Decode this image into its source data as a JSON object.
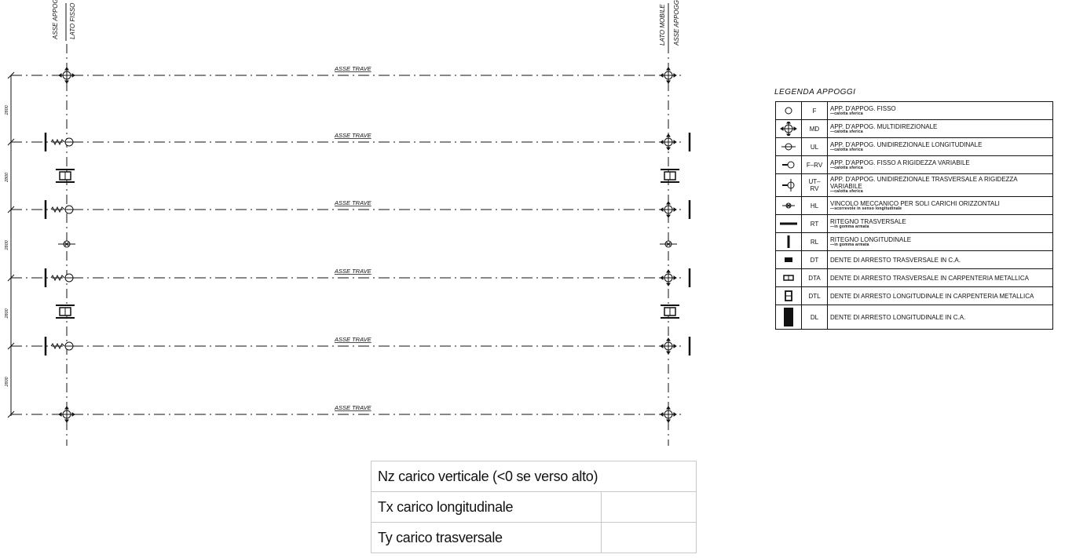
{
  "drawing": {
    "axis_left_labels": [
      "ASSE APPOGGI",
      "LATO FISSO"
    ],
    "axis_right_labels": [
      "LATO MOBILE",
      "ASSE APPOGGI"
    ],
    "beam_label": "ASSE TRAVE",
    "spacing_label": "2800",
    "spacing_count": 5
  },
  "legend": {
    "title": "LEGENDA APPOGGI",
    "rows": [
      {
        "symbol": "circle-icon",
        "code": "F",
        "desc": "APP. D'APPOG. FISSO",
        "sub": "—calotta sferica"
      },
      {
        "symbol": "multidirectional-icon",
        "code": "MD",
        "desc": "APP. D'APPOG. MULTIDIREZIONALE",
        "sub": "—calotta sferica"
      },
      {
        "symbol": "unidirectional-longitudinal-icon",
        "code": "UL",
        "desc": "APP. D'APPOG. UNIDIREZIONALE LONGITUDINALE",
        "sub": "—calotta sferica"
      },
      {
        "symbol": "fixed-variable-stiffness-icon",
        "code": "F–RV",
        "desc": "APP. D'APPOG. FISSO A RIGIDEZZA VARIABILE",
        "sub": "—calotta sferica"
      },
      {
        "symbol": "unidirectional-transverse-variable-icon",
        "code": "UT–RV",
        "desc": "APP. D'APPOG. UNIDIREZIONALE TRASVERSALE A RIGIDEZZA VARIABILE",
        "sub": "—calotta sferica"
      },
      {
        "symbol": "horizontal-restraint-icon",
        "code": "HL",
        "desc": "VINCOLO MECCANICO PER SOLI CARICHI ORIZZONTALI",
        "sub": "—scorrevole in senso longitudinale"
      },
      {
        "symbol": "transverse-restraint-icon",
        "code": "RT",
        "desc": "RITEGNO TRASVERSALE",
        "sub": "—in gomma armata"
      },
      {
        "symbol": "longitudinal-restraint-icon",
        "code": "RL",
        "desc": "RITEGNO LONGITUDINALE",
        "sub": "—in gomma armata"
      },
      {
        "symbol": "transverse-stop-concrete-icon",
        "code": "DT",
        "desc": "DENTE DI ARRESTO TRASVERSALE IN C.A.",
        "sub": ""
      },
      {
        "symbol": "transverse-stop-steel-icon",
        "code": "DTA",
        "desc": "DENTE DI ARRESTO TRASVERSALE IN CARPENTERIA METALLICA",
        "sub": ""
      },
      {
        "symbol": "longitudinal-stop-steel-icon",
        "code": "DTL",
        "desc": "DENTE DI ARRESTO LONGITUDINALE IN CARPENTERIA METALLICA",
        "sub": ""
      },
      {
        "symbol": "longitudinal-stop-concrete-icon",
        "code": "DL",
        "desc": "DENTE DI ARRESTO LONGITUDINALE IN C.A.",
        "sub": ""
      }
    ]
  },
  "loads": {
    "rows": [
      {
        "label": "Nz carico verticale (<0 se verso alto)",
        "value": ""
      },
      {
        "label": "Tx carico longitudinale",
        "value": ""
      },
      {
        "label": "Ty carico trasversale",
        "value": ""
      }
    ]
  }
}
